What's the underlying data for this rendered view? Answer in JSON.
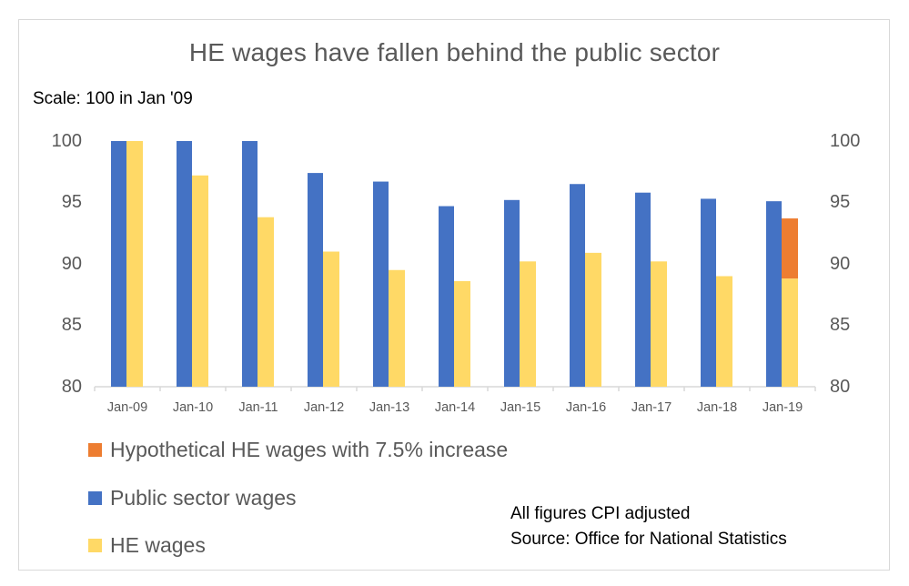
{
  "chart_data": {
    "type": "bar",
    "title": "HE wages have fallen behind the public sector",
    "subtitle": "Scale: 100 in Jan '09",
    "categories": [
      "Jan-09",
      "Jan-10",
      "Jan-11",
      "Jan-12",
      "Jan-13",
      "Jan-14",
      "Jan-15",
      "Jan-16",
      "Jan-17",
      "Jan-18",
      "Jan-19"
    ],
    "series": [
      {
        "name": "Public sector wages",
        "color": "#4472C4",
        "values": [
          100,
          100,
          100,
          97.4,
          96.7,
          94.7,
          95.2,
          96.5,
          95.8,
          95.3,
          95.1
        ]
      },
      {
        "name": "HE wages",
        "color": "#FFD966",
        "values": [
          100,
          97.2,
          93.8,
          91.0,
          89.5,
          88.6,
          90.2,
          90.9,
          90.2,
          89.0,
          88.8
        ]
      },
      {
        "name": "Hypothetical HE wages with 7.5% increase",
        "color": "#ED7D31",
        "values": [
          null,
          null,
          null,
          null,
          null,
          null,
          null,
          null,
          null,
          null,
          93.7
        ],
        "stacked_on": "HE wages"
      }
    ],
    "xlabel": "",
    "ylabel": "",
    "ylim": [
      80,
      100
    ],
    "yticks": [
      100,
      95,
      90,
      85,
      80
    ],
    "secondary_yaxis": true,
    "grid": false,
    "legend_position": "bottom-left",
    "annotations": [
      "All figures CPI adjusted",
      "Source: Office for National Statistics"
    ]
  },
  "title": "HE wages have fallen behind the public sector",
  "scale_note": "Scale: 100 in Jan '09",
  "yaxis": {
    "ticks": [
      "100",
      "95",
      "90",
      "85",
      "80"
    ]
  },
  "xaxis": {
    "labels": [
      "Jan-09",
      "Jan-10",
      "Jan-11",
      "Jan-12",
      "Jan-13",
      "Jan-14",
      "Jan-15",
      "Jan-16",
      "Jan-17",
      "Jan-18",
      "Jan-19"
    ]
  },
  "legend": [
    {
      "label": "Hypothetical HE wages with 7.5% increase",
      "color": "#ED7D31"
    },
    {
      "label": "Public sector wages",
      "color": "#4472C4"
    },
    {
      "label": "HE wages",
      "color": "#FFD966"
    }
  ],
  "notes": {
    "line1": "All figures CPI adjusted",
    "line2": "Source: Office for National Statistics"
  },
  "colors": {
    "axis": "#d9d9d9",
    "text": "#595959",
    "frame": "#d9d9d9"
  }
}
